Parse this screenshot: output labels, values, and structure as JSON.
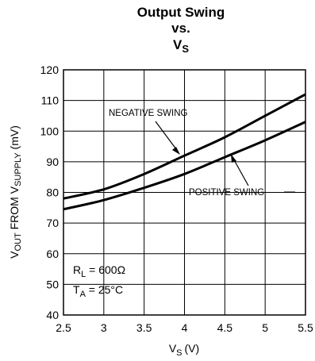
{
  "chart_data": {
    "type": "line",
    "title_lines": [
      "Output Swing",
      "vs.",
      "V",
      "S"
    ],
    "xlabel": {
      "main": "V",
      "sub": "S",
      "unit": "(V)"
    },
    "ylabel": {
      "p1": "V",
      "s1": "OUT",
      "p2": " FROM V",
      "s2": "SUPPLY",
      "p3": " (mV)"
    },
    "xlim": [
      2.5,
      5.5
    ],
    "ylim": [
      40,
      120
    ],
    "x_ticks": [
      2.5,
      3,
      3.5,
      4,
      4.5,
      5,
      5.5
    ],
    "x_tick_labels": [
      "2.5",
      "3",
      "3.5",
      "4",
      "4.5",
      "5",
      "5.5"
    ],
    "y_ticks": [
      40,
      50,
      60,
      70,
      80,
      90,
      100,
      110,
      120
    ],
    "y_tick_labels": [
      "40",
      "50",
      "60",
      "70",
      "80",
      "90",
      "100",
      "110",
      "120"
    ],
    "grid": true,
    "series": [
      {
        "name": "NEGATIVE SWING",
        "x": [
          2.5,
          3,
          3.5,
          4,
          4.5,
          5,
          5.5
        ],
        "values": [
          78,
          81,
          86,
          92,
          98,
          105,
          112
        ]
      },
      {
        "name": "POSITIVE SWING",
        "x": [
          2.5,
          3,
          3.5,
          4,
          4.5,
          5,
          5.5
        ],
        "values": [
          74.5,
          77.5,
          81.5,
          86,
          91.5,
          97,
          103
        ]
      }
    ],
    "conditions": {
      "rl": {
        "p": "R",
        "s": "L",
        "v": " = 600Ω"
      },
      "ta": {
        "p": "T",
        "s": "A",
        "v": " = 25°C"
      }
    },
    "colors": {
      "line": "#000000",
      "grid": "#000000",
      "background": "#ffffff"
    }
  }
}
